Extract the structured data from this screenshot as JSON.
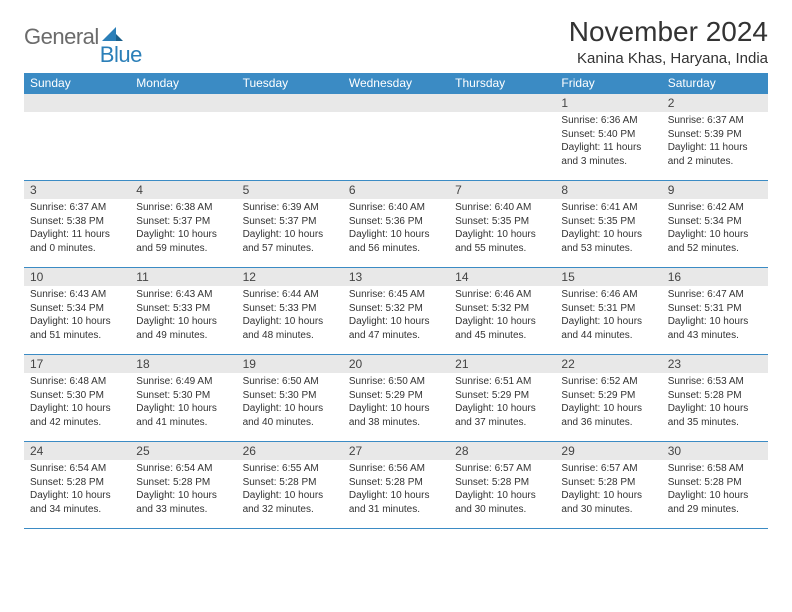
{
  "logo": {
    "text1": "General",
    "text2": "Blue"
  },
  "title": "November 2024",
  "location": "Kanina Khas, Haryana, India",
  "colors": {
    "header_bg": "#3b8bc4",
    "header_text": "#ffffff",
    "daynum_bg": "#e8e8e8",
    "border": "#3b8bc4",
    "logo_gray": "#6b6b6b",
    "logo_blue": "#2b7fb8"
  },
  "weekdays": [
    "Sunday",
    "Monday",
    "Tuesday",
    "Wednesday",
    "Thursday",
    "Friday",
    "Saturday"
  ],
  "weeks": [
    [
      null,
      null,
      null,
      null,
      null,
      {
        "n": "1",
        "sr": "6:36 AM",
        "ss": "5:40 PM",
        "dl": "11 hours and 3 minutes."
      },
      {
        "n": "2",
        "sr": "6:37 AM",
        "ss": "5:39 PM",
        "dl": "11 hours and 2 minutes."
      }
    ],
    [
      {
        "n": "3",
        "sr": "6:37 AM",
        "ss": "5:38 PM",
        "dl": "11 hours and 0 minutes."
      },
      {
        "n": "4",
        "sr": "6:38 AM",
        "ss": "5:37 PM",
        "dl": "10 hours and 59 minutes."
      },
      {
        "n": "5",
        "sr": "6:39 AM",
        "ss": "5:37 PM",
        "dl": "10 hours and 57 minutes."
      },
      {
        "n": "6",
        "sr": "6:40 AM",
        "ss": "5:36 PM",
        "dl": "10 hours and 56 minutes."
      },
      {
        "n": "7",
        "sr": "6:40 AM",
        "ss": "5:35 PM",
        "dl": "10 hours and 55 minutes."
      },
      {
        "n": "8",
        "sr": "6:41 AM",
        "ss": "5:35 PM",
        "dl": "10 hours and 53 minutes."
      },
      {
        "n": "9",
        "sr": "6:42 AM",
        "ss": "5:34 PM",
        "dl": "10 hours and 52 minutes."
      }
    ],
    [
      {
        "n": "10",
        "sr": "6:43 AM",
        "ss": "5:34 PM",
        "dl": "10 hours and 51 minutes."
      },
      {
        "n": "11",
        "sr": "6:43 AM",
        "ss": "5:33 PM",
        "dl": "10 hours and 49 minutes."
      },
      {
        "n": "12",
        "sr": "6:44 AM",
        "ss": "5:33 PM",
        "dl": "10 hours and 48 minutes."
      },
      {
        "n": "13",
        "sr": "6:45 AM",
        "ss": "5:32 PM",
        "dl": "10 hours and 47 minutes."
      },
      {
        "n": "14",
        "sr": "6:46 AM",
        "ss": "5:32 PM",
        "dl": "10 hours and 45 minutes."
      },
      {
        "n": "15",
        "sr": "6:46 AM",
        "ss": "5:31 PM",
        "dl": "10 hours and 44 minutes."
      },
      {
        "n": "16",
        "sr": "6:47 AM",
        "ss": "5:31 PM",
        "dl": "10 hours and 43 minutes."
      }
    ],
    [
      {
        "n": "17",
        "sr": "6:48 AM",
        "ss": "5:30 PM",
        "dl": "10 hours and 42 minutes."
      },
      {
        "n": "18",
        "sr": "6:49 AM",
        "ss": "5:30 PM",
        "dl": "10 hours and 41 minutes."
      },
      {
        "n": "19",
        "sr": "6:50 AM",
        "ss": "5:30 PM",
        "dl": "10 hours and 40 minutes."
      },
      {
        "n": "20",
        "sr": "6:50 AM",
        "ss": "5:29 PM",
        "dl": "10 hours and 38 minutes."
      },
      {
        "n": "21",
        "sr": "6:51 AM",
        "ss": "5:29 PM",
        "dl": "10 hours and 37 minutes."
      },
      {
        "n": "22",
        "sr": "6:52 AM",
        "ss": "5:29 PM",
        "dl": "10 hours and 36 minutes."
      },
      {
        "n": "23",
        "sr": "6:53 AM",
        "ss": "5:28 PM",
        "dl": "10 hours and 35 minutes."
      }
    ],
    [
      {
        "n": "24",
        "sr": "6:54 AM",
        "ss": "5:28 PM",
        "dl": "10 hours and 34 minutes."
      },
      {
        "n": "25",
        "sr": "6:54 AM",
        "ss": "5:28 PM",
        "dl": "10 hours and 33 minutes."
      },
      {
        "n": "26",
        "sr": "6:55 AM",
        "ss": "5:28 PM",
        "dl": "10 hours and 32 minutes."
      },
      {
        "n": "27",
        "sr": "6:56 AM",
        "ss": "5:28 PM",
        "dl": "10 hours and 31 minutes."
      },
      {
        "n": "28",
        "sr": "6:57 AM",
        "ss": "5:28 PM",
        "dl": "10 hours and 30 minutes."
      },
      {
        "n": "29",
        "sr": "6:57 AM",
        "ss": "5:28 PM",
        "dl": "10 hours and 30 minutes."
      },
      {
        "n": "30",
        "sr": "6:58 AM",
        "ss": "5:28 PM",
        "dl": "10 hours and 29 minutes."
      }
    ]
  ],
  "labels": {
    "sunrise": "Sunrise:",
    "sunset": "Sunset:",
    "daylight": "Daylight:"
  }
}
